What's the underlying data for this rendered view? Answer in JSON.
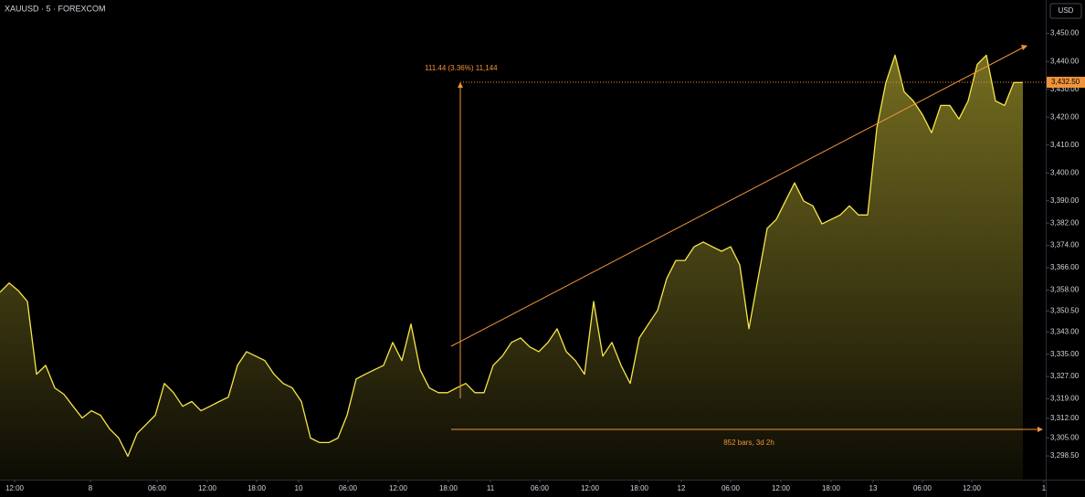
{
  "chart_data": {
    "type": "area",
    "title": "XAUUSD · 5 · FOREXCOM",
    "currency": "USD",
    "color": "#f7e64a",
    "values": [
      3357.2,
      3360.5,
      3357.8,
      3353.9,
      3327.8,
      3331.0,
      3322.9,
      3320.6,
      3316.3,
      3312.1,
      3314.7,
      3313.1,
      3308.2,
      3304.9,
      3298.4,
      3306.5,
      3309.8,
      3313.1,
      3324.5,
      3321.2,
      3316.3,
      3318.0,
      3314.7,
      3316.3,
      3318.0,
      3319.6,
      3331.0,
      3335.9,
      3334.3,
      3332.7,
      3327.8,
      3324.5,
      3322.9,
      3318.0,
      3304.9,
      3303.3,
      3303.3,
      3304.9,
      3313.1,
      3326.1,
      3327.8,
      3329.4,
      3331.0,
      3339.2,
      3332.7,
      3345.8,
      3329.4,
      3322.9,
      3321.2,
      3321.2,
      3322.9,
      3324.5,
      3321.2,
      3321.2,
      3331.0,
      3334.3,
      3339.2,
      3340.8,
      3337.6,
      3335.9,
      3339.2,
      3344.1,
      3335.9,
      3332.7,
      3327.8,
      3353.9,
      3334.3,
      3339.2,
      3331.0,
      3324.5,
      3340.8,
      3345.8,
      3350.7,
      3362.1,
      3368.6,
      3368.6,
      3373.5,
      3375.2,
      3373.5,
      3371.9,
      3373.5,
      3367.0,
      3344.1,
      3362.1,
      3380.1,
      3383.3,
      3389.9,
      3396.4,
      3389.9,
      3388.2,
      3381.7,
      3383.3,
      3384.9,
      3388.2,
      3384.9,
      3384.9,
      3416.0,
      3432.4,
      3442.2,
      3429.1,
      3425.8,
      3420.9,
      3414.4,
      3424.2,
      3424.2,
      3419.3,
      3425.8,
      3438.9,
      3442.2,
      3425.8,
      3424.2,
      3432.4,
      3432.4
    ],
    "xlim": [
      0,
      114.5
    ],
    "xticks": [
      {
        "value": 1.6,
        "label": "12:00"
      },
      {
        "value": 9.9,
        "label": "8"
      },
      {
        "value": 17.2,
        "label": "06:00"
      },
      {
        "value": 22.7,
        "label": "12:00"
      },
      {
        "value": 28.1,
        "label": "18:00"
      },
      {
        "value": 32.7,
        "label": "10"
      },
      {
        "value": 38.1,
        "label": "06:00"
      },
      {
        "value": 43.6,
        "label": "12:00"
      },
      {
        "value": 49.1,
        "label": "18:00"
      },
      {
        "value": 53.7,
        "label": "11"
      },
      {
        "value": 59.1,
        "label": "06:00"
      },
      {
        "value": 64.6,
        "label": "12:00"
      },
      {
        "value": 70.0,
        "label": "18:00"
      },
      {
        "value": 74.6,
        "label": "12"
      },
      {
        "value": 80.0,
        "label": "06:00"
      },
      {
        "value": 85.5,
        "label": "12:00"
      },
      {
        "value": 91.0,
        "label": "18:00"
      },
      {
        "value": 95.6,
        "label": "13"
      },
      {
        "value": 101.0,
        "label": "06:00"
      },
      {
        "value": 106.4,
        "label": "12:00"
      },
      {
        "value": 114.3,
        "label": "1"
      }
    ],
    "ylim": [
      3290,
      3462
    ],
    "yticks": [
      {
        "value": 3298.5,
        "label": "3,298.50"
      },
      {
        "value": 3305,
        "label": "3,305.00"
      },
      {
        "value": 3312,
        "label": "3,312.00"
      },
      {
        "value": 3319,
        "label": "3,319.00"
      },
      {
        "value": 3327,
        "label": "3,327.00"
      },
      {
        "value": 3335,
        "label": "3,335.00"
      },
      {
        "value": 3343,
        "label": "3,343.00"
      },
      {
        "value": 3350.5,
        "label": "3,350.50"
      },
      {
        "value": 3358,
        "label": "3,358.00"
      },
      {
        "value": 3366,
        "label": "3,366.00"
      },
      {
        "value": 3374,
        "label": "3,374.00"
      },
      {
        "value": 3382,
        "label": "3,382.00"
      },
      {
        "value": 3390,
        "label": "3,390.00"
      },
      {
        "value": 3400,
        "label": "3,400.00"
      },
      {
        "value": 3410,
        "label": "3,410.00"
      },
      {
        "value": 3420,
        "label": "3,420.00"
      },
      {
        "value": 3430,
        "label": "3,430.00"
      },
      {
        "value": 3440,
        "label": "3,440.00"
      },
      {
        "value": 3450,
        "label": "3,450.00"
      }
    ],
    "last_price": {
      "value": 3432.5,
      "label": "3,432.50"
    },
    "annotations": [
      "111.44 (3.36%) 11,144",
      "852 bars, 3d 2h"
    ]
  }
}
